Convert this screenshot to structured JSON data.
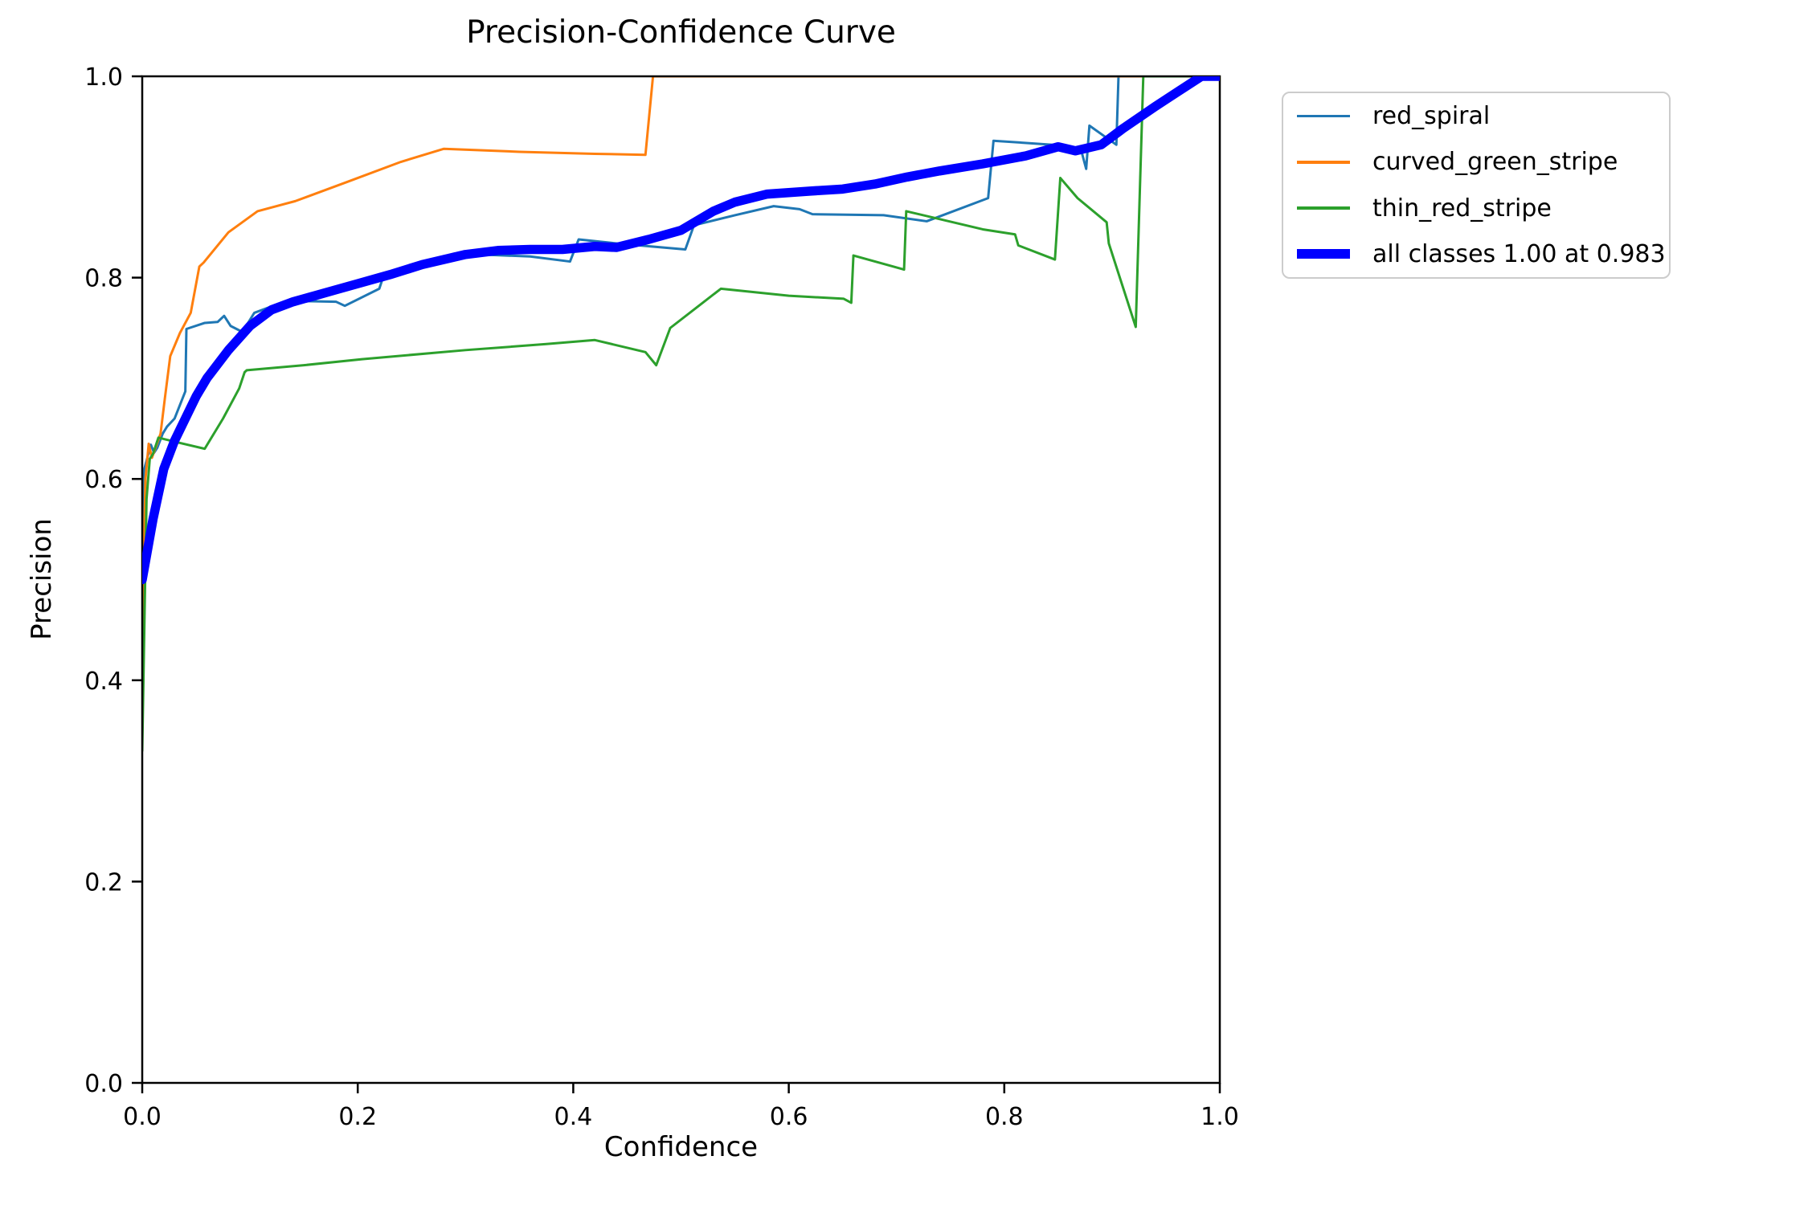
{
  "title": "Precision-Confidence Curve",
  "chart_data": {
    "type": "line",
    "title": "Precision-Confidence Curve",
    "xlabel": "Confidence",
    "ylabel": "Precision",
    "xlim": [
      0,
      1
    ],
    "ylim": [
      0,
      1
    ],
    "grid": false,
    "legend_position": "outside-upper-right",
    "x_ticks": [
      "0.0",
      "0.2",
      "0.4",
      "0.6",
      "0.8",
      "1.0"
    ],
    "y_ticks": [
      "0.0",
      "0.2",
      "0.4",
      "0.6",
      "0.8",
      "1.0"
    ],
    "series": [
      {
        "name": "red_spiral",
        "color": "#1f77b4",
        "emphasis": false,
        "points": [
          [
            0.0,
            0.52
          ],
          [
            0.002,
            0.61
          ],
          [
            0.004,
            0.618
          ],
          [
            0.008,
            0.634
          ],
          [
            0.011,
            0.626
          ],
          [
            0.014,
            0.631
          ],
          [
            0.019,
            0.645
          ],
          [
            0.023,
            0.652
          ],
          [
            0.03,
            0.66
          ],
          [
            0.04,
            0.687
          ],
          [
            0.041,
            0.749
          ],
          [
            0.058,
            0.755
          ],
          [
            0.07,
            0.756
          ],
          [
            0.076,
            0.762
          ],
          [
            0.082,
            0.752
          ],
          [
            0.093,
            0.746
          ],
          [
            0.104,
            0.765
          ],
          [
            0.134,
            0.777
          ],
          [
            0.18,
            0.776
          ],
          [
            0.188,
            0.772
          ],
          [
            0.22,
            0.789
          ],
          [
            0.224,
            0.802
          ],
          [
            0.26,
            0.815
          ],
          [
            0.29,
            0.824
          ],
          [
            0.36,
            0.821
          ],
          [
            0.397,
            0.816
          ],
          [
            0.405,
            0.838
          ],
          [
            0.44,
            0.834
          ],
          [
            0.504,
            0.828
          ],
          [
            0.512,
            0.852
          ],
          [
            0.55,
            0.862
          ],
          [
            0.586,
            0.871
          ],
          [
            0.61,
            0.868
          ],
          [
            0.622,
            0.863
          ],
          [
            0.688,
            0.862
          ],
          [
            0.728,
            0.856
          ],
          [
            0.785,
            0.879
          ],
          [
            0.79,
            0.936
          ],
          [
            0.845,
            0.932
          ],
          [
            0.872,
            0.924
          ],
          [
            0.876,
            0.908
          ],
          [
            0.879,
            0.951
          ],
          [
            0.904,
            0.932
          ],
          [
            0.906,
            1.0
          ],
          [
            1.0,
            1.0
          ]
        ]
      },
      {
        "name": "curved_green_stripe",
        "color": "#ff7f0e",
        "emphasis": false,
        "points": [
          [
            0.0,
            0.45
          ],
          [
            0.003,
            0.6
          ],
          [
            0.006,
            0.635
          ],
          [
            0.009,
            0.621
          ],
          [
            0.013,
            0.633
          ],
          [
            0.017,
            0.645
          ],
          [
            0.021,
            0.68
          ],
          [
            0.026,
            0.722
          ],
          [
            0.035,
            0.745
          ],
          [
            0.045,
            0.765
          ],
          [
            0.053,
            0.811
          ],
          [
            0.057,
            0.815
          ],
          [
            0.08,
            0.845
          ],
          [
            0.107,
            0.866
          ],
          [
            0.142,
            0.876
          ],
          [
            0.19,
            0.895
          ],
          [
            0.24,
            0.915
          ],
          [
            0.28,
            0.928
          ],
          [
            0.35,
            0.925
          ],
          [
            0.42,
            0.923
          ],
          [
            0.467,
            0.922
          ],
          [
            0.474,
            1.0
          ],
          [
            1.0,
            1.0
          ]
        ]
      },
      {
        "name": "thin_red_stripe",
        "color": "#2ca02c",
        "emphasis": false,
        "points": [
          [
            0.0,
            0.33
          ],
          [
            0.004,
            0.58
          ],
          [
            0.007,
            0.62
          ],
          [
            0.01,
            0.625
          ],
          [
            0.015,
            0.641
          ],
          [
            0.03,
            0.637
          ],
          [
            0.058,
            0.63
          ],
          [
            0.075,
            0.66
          ],
          [
            0.09,
            0.69
          ],
          [
            0.095,
            0.706
          ],
          [
            0.097,
            0.708
          ],
          [
            0.15,
            0.713
          ],
          [
            0.204,
            0.719
          ],
          [
            0.3,
            0.728
          ],
          [
            0.375,
            0.734
          ],
          [
            0.42,
            0.738
          ],
          [
            0.467,
            0.726
          ],
          [
            0.477,
            0.713
          ],
          [
            0.49,
            0.75
          ],
          [
            0.537,
            0.789
          ],
          [
            0.6,
            0.782
          ],
          [
            0.651,
            0.779
          ],
          [
            0.658,
            0.775
          ],
          [
            0.66,
            0.822
          ],
          [
            0.697,
            0.811
          ],
          [
            0.707,
            0.808
          ],
          [
            0.709,
            0.866
          ],
          [
            0.78,
            0.848
          ],
          [
            0.81,
            0.843
          ],
          [
            0.813,
            0.832
          ],
          [
            0.847,
            0.818
          ],
          [
            0.852,
            0.899
          ],
          [
            0.868,
            0.879
          ],
          [
            0.895,
            0.855
          ],
          [
            0.897,
            0.834
          ],
          [
            0.922,
            0.751
          ],
          [
            0.929,
            1.0
          ],
          [
            1.0,
            1.0
          ]
        ]
      },
      {
        "name": "all classes 1.00 at 0.983",
        "color": "#0000ff",
        "emphasis": true,
        "points": [
          [
            0.0,
            0.5
          ],
          [
            0.01,
            0.56
          ],
          [
            0.02,
            0.61
          ],
          [
            0.03,
            0.638
          ],
          [
            0.04,
            0.66
          ],
          [
            0.05,
            0.682
          ],
          [
            0.06,
            0.7
          ],
          [
            0.08,
            0.728
          ],
          [
            0.09,
            0.74
          ],
          [
            0.1,
            0.752
          ],
          [
            0.12,
            0.768
          ],
          [
            0.14,
            0.776
          ],
          [
            0.16,
            0.782
          ],
          [
            0.18,
            0.788
          ],
          [
            0.2,
            0.794
          ],
          [
            0.23,
            0.803
          ],
          [
            0.26,
            0.813
          ],
          [
            0.3,
            0.823
          ],
          [
            0.33,
            0.827
          ],
          [
            0.36,
            0.828
          ],
          [
            0.39,
            0.828
          ],
          [
            0.42,
            0.831
          ],
          [
            0.44,
            0.83
          ],
          [
            0.47,
            0.838
          ],
          [
            0.5,
            0.847
          ],
          [
            0.53,
            0.866
          ],
          [
            0.55,
            0.875
          ],
          [
            0.58,
            0.883
          ],
          [
            0.62,
            0.886
          ],
          [
            0.65,
            0.888
          ],
          [
            0.68,
            0.893
          ],
          [
            0.71,
            0.9
          ],
          [
            0.74,
            0.906
          ],
          [
            0.78,
            0.913
          ],
          [
            0.82,
            0.921
          ],
          [
            0.85,
            0.93
          ],
          [
            0.866,
            0.926
          ],
          [
            0.89,
            0.932
          ],
          [
            0.91,
            0.948
          ],
          [
            0.94,
            0.97
          ],
          [
            0.96,
            0.984
          ],
          [
            0.983,
            1.0
          ],
          [
            1.0,
            1.0
          ]
        ]
      }
    ]
  },
  "legend": {
    "entries": [
      {
        "label": "red_spiral",
        "color": "#1f77b4",
        "thick": false
      },
      {
        "label": "curved_green_stripe",
        "color": "#ff7f0e",
        "thick": false
      },
      {
        "label": "thin_red_stripe",
        "color": "#2ca02c",
        "thick": false
      },
      {
        "label": "all classes 1.00 at 0.983",
        "color": "#0000ff",
        "thick": true
      }
    ]
  }
}
